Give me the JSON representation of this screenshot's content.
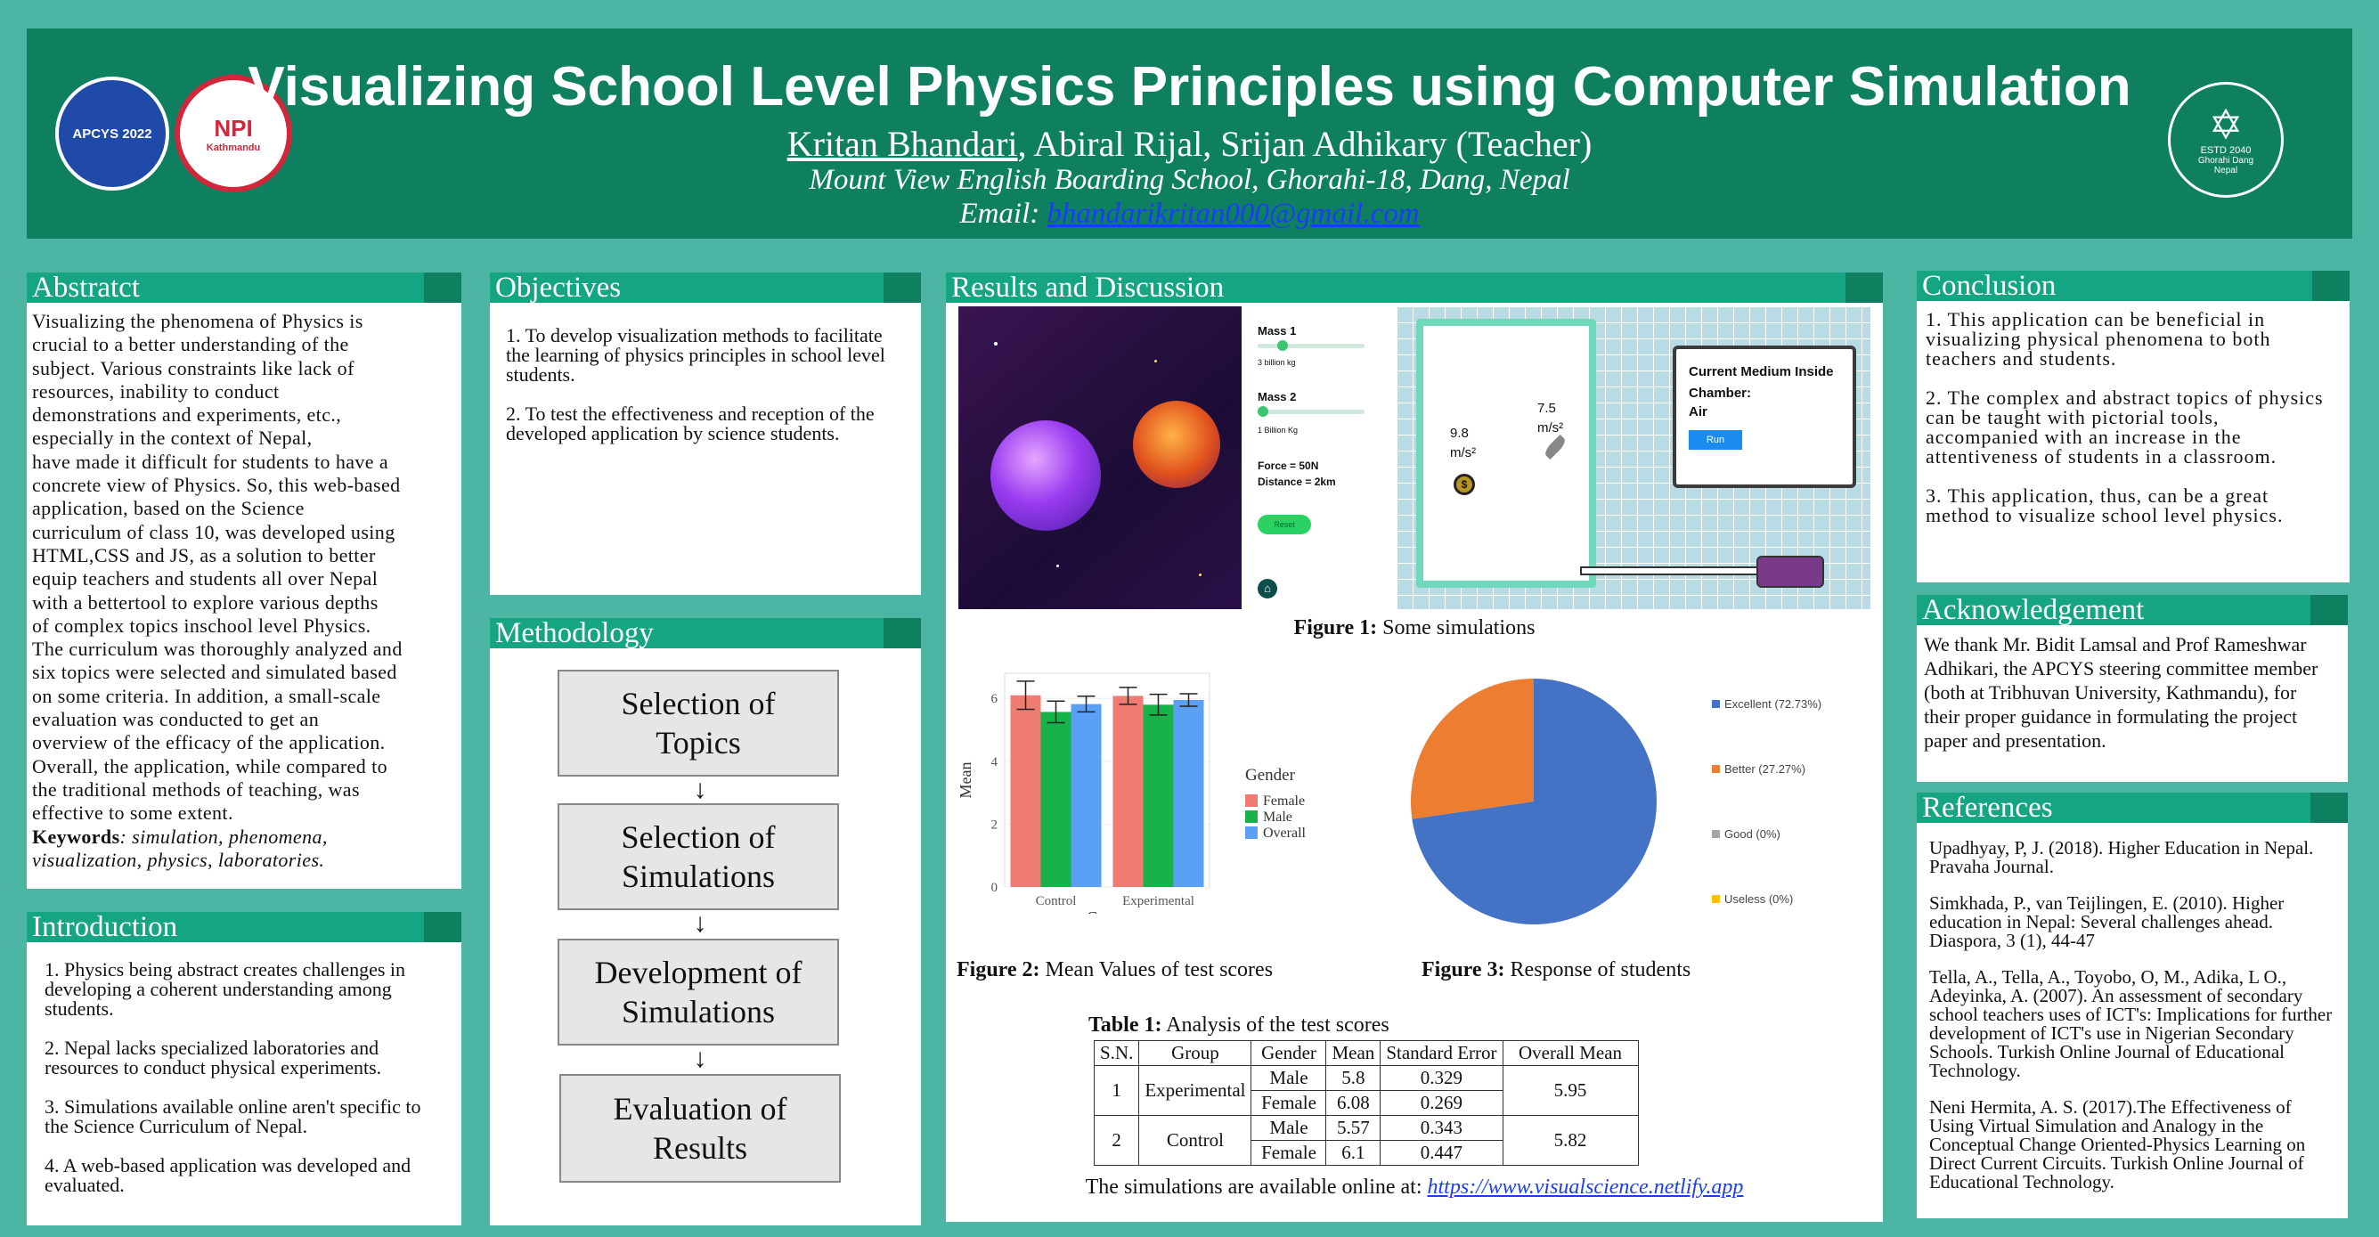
{
  "header": {
    "title": "Visualizing School Level Physics Principles using Computer Simulation",
    "author_main": "Kritan Bhandari",
    "authors_rest": ", Abiral Rijal, Srijan Adhikary (Teacher)",
    "affiliation": "Mount View English Boarding School, Ghorahi-18, Dang, Nepal",
    "email_label": "Email: ",
    "email": "bhandarikritan000@gmail.com",
    "logo1_text": "APCYS 2022",
    "logo2_top": "NPI",
    "logo2_bottom": "Kathmandu",
    "logo3_text": "ESTD 2040",
    "logo3_bottom": "Ghorahi Dang Nepal"
  },
  "abstract": {
    "heading": "Abstratct",
    "lines": [
      "Visualizing the phenomena of Physics is",
      "crucial to a better understanding of the",
      "subject. Various constraints like lack of",
      "resources, inability to conduct",
      "demonstrations and experiments, etc.,",
      "especially in the context of Nepal,",
      "have made it difficult for students to have a",
      "concrete view of Physics. So, this web-based",
      "application, based on the Science",
      "curriculum of class 10, was developed using",
      "HTML,CSS and JS, as a solution to better",
      "equip teachers and students all over Nepal",
      "with a bettertool to explore various depths",
      "of complex topics inschool level Physics.",
      "The curriculum was thoroughly analyzed and",
      "six topics were selected and simulated based",
      "on some criteria. In addition, a small-scale",
      "evaluation was conducted to get an",
      "overview of the efficacy of the application.",
      "Overall, the application, while compared to",
      "the traditional methods of teaching, was",
      "effective to some extent."
    ],
    "keywords_label": "Keywords",
    "keywords": ": simulation, phenomena,",
    "keywords2": "visualization, physics, laboratories."
  },
  "introduction": {
    "heading": "Introduction",
    "items": [
      "1. Physics being abstract creates challenges in developing a coherent understanding among students.",
      "2. Nepal lacks specialized laboratories and resources to conduct physical experiments.",
      "3. Simulations available online aren't specific to the Science Curriculum of Nepal.",
      "4. A web-based application was developed and evaluated."
    ]
  },
  "objectives": {
    "heading": "Objectives",
    "items": [
      "1. To develop visualization methods to facilitate the learning of physics principles in school level students.",
      "2. To test the effectiveness and reception of the developed application by science students."
    ]
  },
  "methodology": {
    "heading": "Methodology",
    "steps": [
      "Selection of Topics",
      "Selection of Simulations",
      "Development of Simulations",
      "Evaluation of Results"
    ],
    "arrow": "↓"
  },
  "results": {
    "heading": "Results and Discussion",
    "sim_panel": {
      "mass1": "Mass 1",
      "mass1_val": "3 billion kg",
      "mass2": "Mass 2",
      "mass2_val": "1 Billion Kg",
      "force": "Force = 50N",
      "distance": "Distance = 2km",
      "reset": "Reset",
      "accel1": "9.8",
      "accel1_unit": "m/s²",
      "accel2": "7.5",
      "accel2_unit": "m/s²",
      "medium_title": "Current Medium Inside Chamber:",
      "medium_value": "Air",
      "run": "Run"
    },
    "fig1_label": "Figure 1:",
    "fig1_caption": " Some simulations",
    "fig2_label": "Figure 2:",
    "fig2_caption": " Mean Values of test scores",
    "fig3_label": "Figure 3:",
    "fig3_caption": " Response of students",
    "table_label": "Table 1:",
    "table_caption": " Analysis of the test scores",
    "table_headers": [
      "S.N.",
      "Group",
      "Gender",
      "Mean",
      "Standard Error",
      "Overall Mean"
    ],
    "table_rows": [
      {
        "sn": "1",
        "group": "Experimental",
        "overall": "5.95",
        "rows": [
          [
            "Male",
            "5.8",
            "0.329"
          ],
          [
            "Female",
            "6.08",
            "0.269"
          ]
        ]
      },
      {
        "sn": "2",
        "group": "Control",
        "overall": "5.82",
        "rows": [
          [
            "Male",
            "5.57",
            "0.343"
          ],
          [
            "Female",
            "6.1",
            "0.447"
          ]
        ]
      }
    ],
    "online_text": "The simulations are available online at: ",
    "online_url": "https://www.visualscience.netlify.app"
  },
  "chart_data": [
    {
      "type": "bar",
      "title": "",
      "xlabel": "Group",
      "ylabel": "Mean",
      "categories": [
        "Control",
        "Experimental"
      ],
      "series": [
        {
          "name": "Female",
          "values": [
            6.1,
            6.08
          ],
          "errors": [
            0.447,
            0.269
          ],
          "color": "#f07b72"
        },
        {
          "name": "Male",
          "values": [
            5.57,
            5.8
          ],
          "errors": [
            0.343,
            0.329
          ],
          "color": "#17b34a"
        },
        {
          "name": "Overall",
          "values": [
            5.82,
            5.95
          ],
          "errors": [
            0.25,
            0.2
          ],
          "color": "#5aa0f5"
        }
      ],
      "yticks": [
        "0",
        "2",
        "4",
        "6"
      ],
      "ylim": [
        0,
        6.8
      ],
      "legend_title": "Gender",
      "legend_position": "right"
    },
    {
      "type": "pie",
      "labels": [
        "Excellent (72.73%)",
        "Better (27.27%)",
        "Good (0%)",
        "Useless (0%)"
      ],
      "values": [
        72.73,
        27.27,
        0,
        0
      ],
      "colors": [
        "#4472c4",
        "#ed7d31",
        "#a5a5a5",
        "#ffc000"
      ],
      "legend_position": "right"
    }
  ],
  "conclusion": {
    "heading": "Conclusion",
    "items": [
      "1. This application can be beneficial in visualizing physical phenomena to both teachers and students.",
      "2. The complex and abstract topics of physics can be taught with pictorial tools, accompanied with an increase in the attentiveness of students in a classroom.",
      "3. This application, thus, can be a great method to visualize school level physics."
    ]
  },
  "acknowledgement": {
    "heading": "Acknowledgement",
    "text": "We thank Mr. Bidit Lamsal and Prof Rameshwar Adhikari, the APCYS steering committee member (both at Tribhuvan University, Kathmandu), for their proper guidance in formulating the project paper and presentation."
  },
  "references": {
    "heading": "References",
    "items": [
      "Upadhyay, P, J. (2018). Higher Education in Nepal. Pravaha Journal.",
      "Simkhada, P., van Teijlingen, E. (2010). Higher education in Nepal: Several challenges ahead. Diaspora, 3 (1), 44-47",
      "Tella, A., Tella, A., Toyobo, O, M., Adika, L O., Adeyinka, A. (2007). An assessment of secondary school teachers uses of ICT's: Implications for further development of ICT's use in Nigerian Secondary Schools. Turkish Online Journal of Educational Technology.",
      "Neni Hermita, A. S. (2017).The Effectiveness of Using Virtual Simulation and Analogy in the Conceptual Change Oriented-Physics Learning on Direct Current Circuits. Turkish Online Journal of Educational Technology."
    ]
  }
}
